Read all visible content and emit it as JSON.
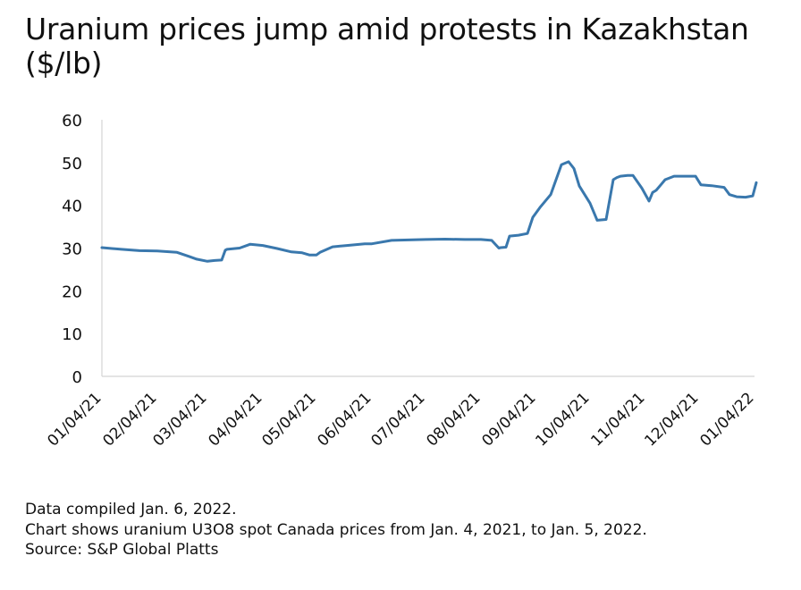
{
  "chart_data": {
    "type": "line",
    "title": "Uranium prices jump amid protests in Kazakhstan ($/lb)",
    "xlabel": "",
    "ylabel": "",
    "ylim": [
      0,
      60
    ],
    "yticks": [
      "0",
      "10",
      "20",
      "30",
      "40",
      "50",
      "60"
    ],
    "xticks": [
      "01/04/21",
      "02/04/21",
      "03/04/21",
      "04/04/21",
      "05/04/21",
      "06/04/21",
      "07/04/21",
      "08/04/21",
      "09/04/21",
      "10/04/21",
      "11/04/21",
      "12/04/21",
      "01/04/22"
    ],
    "grid": false,
    "line_color": "#3a78ad",
    "series": [
      {
        "x": [
          "2021-01-04",
          "2021-01-15",
          "2021-01-25",
          "2021-02-04",
          "2021-02-15",
          "2021-02-22",
          "2021-02-26",
          "2021-03-04",
          "2021-03-08",
          "2021-03-12",
          "2021-03-14",
          "2021-03-15",
          "2021-03-22",
          "2021-03-28",
          "2021-04-04",
          "2021-04-12",
          "2021-04-20",
          "2021-04-26",
          "2021-04-30",
          "2021-05-04",
          "2021-05-06",
          "2021-05-13",
          "2021-05-21",
          "2021-05-31",
          "2021-06-04",
          "2021-06-15",
          "2021-07-04",
          "2021-07-15",
          "2021-07-26",
          "2021-08-04",
          "2021-08-10",
          "2021-08-14",
          "2021-08-15",
          "2021-08-18",
          "2021-08-20",
          "2021-08-25",
          "2021-08-30",
          "2021-09-02",
          "2021-09-06",
          "2021-09-12",
          "2021-09-18",
          "2021-09-22",
          "2021-09-25",
          "2021-09-28",
          "2021-10-01",
          "2021-10-04",
          "2021-10-08",
          "2021-10-13",
          "2021-10-17",
          "2021-10-19",
          "2021-10-21",
          "2021-10-25",
          "2021-10-28",
          "2021-11-02",
          "2021-11-06",
          "2021-11-08",
          "2021-11-10",
          "2021-11-13",
          "2021-11-15",
          "2021-11-20",
          "2021-11-25",
          "2021-12-02",
          "2021-12-05",
          "2021-12-11",
          "2021-12-18",
          "2021-12-21",
          "2021-12-25",
          "2021-12-30",
          "2022-01-03",
          "2022-01-05"
        ],
        "values": [
          30.1,
          29.7,
          29.4,
          29.3,
          29.0,
          28.0,
          27.4,
          26.9,
          27.1,
          27.2,
          29.5,
          29.7,
          30.0,
          30.9,
          30.6,
          29.9,
          29.1,
          28.9,
          28.4,
          28.4,
          29.0,
          30.3,
          30.6,
          31.0,
          31.0,
          31.8,
          32.0,
          32.1,
          32.0,
          32.0,
          31.8,
          30.0,
          30.1,
          30.2,
          32.8,
          33.0,
          33.4,
          37.2,
          39.5,
          42.5,
          49.5,
          50.2,
          48.6,
          44.5,
          42.5,
          40.5,
          36.5,
          36.7,
          46.0,
          46.5,
          46.8,
          47.0,
          47.0,
          44.0,
          41.0,
          43.0,
          43.5,
          45.0,
          46.0,
          46.8,
          46.8,
          46.8,
          44.8,
          44.6,
          44.2,
          42.5,
          42.0,
          41.9,
          42.2,
          45.3
        ]
      }
    ]
  },
  "notes": {
    "compiled": "Data compiled Jan. 6, 2022.",
    "description": "Chart shows uranium U3O8 spot Canada prices from Jan. 4, 2021, to Jan. 5, 2022.",
    "source": "Source: S&P Global Platts"
  }
}
